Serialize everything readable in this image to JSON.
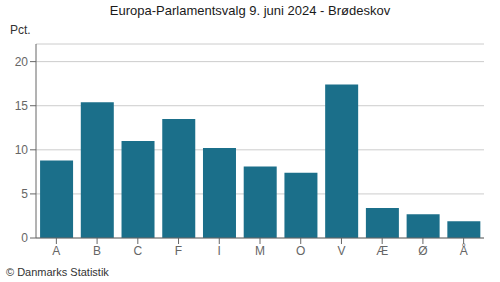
{
  "chart_data": {
    "type": "bar",
    "title": "Europa-Parlamentsvalg 9. juni 2024 - Brødeskov",
    "ylabel": "Pct.",
    "annotations": [
      "© Danmarks Statistik"
    ],
    "categories": [
      "A",
      "B",
      "C",
      "F",
      "I",
      "M",
      "O",
      "V",
      "Æ",
      "Ø",
      "Å"
    ],
    "values": [
      8.8,
      15.4,
      11.0,
      13.5,
      10.2,
      8.1,
      7.4,
      17.4,
      3.4,
      2.7,
      1.9
    ],
    "color": "#1b6f8a",
    "ylim": [
      0,
      22
    ],
    "yticks": [
      0,
      5,
      10,
      15,
      20
    ],
    "grid": true
  }
}
